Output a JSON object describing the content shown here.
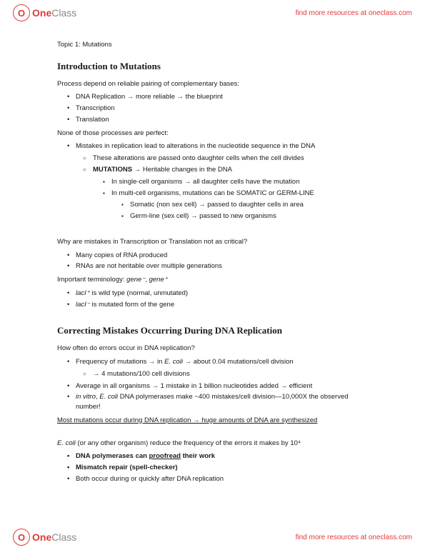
{
  "header": {
    "logo_one": "One",
    "logo_class": "Class",
    "link": "find more resources at oneclass.com"
  },
  "footer": {
    "logo_one": "One",
    "logo_class": "Class",
    "link": "find more resources at oneclass.com"
  },
  "doc": {
    "topic": "Topic 1: Mutations",
    "sec1_title": "Introduction to Mutations",
    "p1": "Process depend on reliable pairing of complementary bases:",
    "b1": "DNA Replication → more reliable → the blueprint",
    "b2": "Transcription",
    "b3": "Translation",
    "p2": "None of those processes are perfect:",
    "b4": "Mistakes in replication lead to alterations in the nucleotide sequence in the DNA",
    "b4a": "These alterations are passed onto daughter cells when the cell divides",
    "b4b_pre": "MUTATIONS",
    "b4b_post": " → Heritable changes in the DNA",
    "b4b1": "In single-cell organisms → all daughter cells have the mutation",
    "b4b2": "In multi-cell organisms, mutations can be SOMATIC or GERM-LINE",
    "b4b2a": "Somatic (non sex cell) → passed to daughter cells in area",
    "b4b2b": "Germ-line (sex cell) → passed to new organisms",
    "q1": "Why are mistakes in Transcription or Translation not as critical?",
    "b5": "Many copies of RNA produced",
    "b6": "RNAs are not heritable over multiple generations",
    "term_label": "Important terminology: ",
    "term_gene1": "gene⁻",
    "term_sep": ", ",
    "term_gene2": "gene⁺",
    "b7_pre": "lacI⁺",
    "b7_post": " is wild type (normal, unmutated)",
    "b8_pre": "lacI⁻",
    "b8_post": " is mutated form of the gene",
    "sec2_title": "Correcting Mistakes Occurring During DNA Replication",
    "p3": "How often do errors occur in DNA replication?",
    "b9_a": "Frequency of mutations → in ",
    "b9_b": "E. coli",
    "b9_c": " → about 0.04 mutations/cell division",
    "b9a": "→ 4 mutations/100 cell divisions",
    "b10": "Average in all organisms → 1 mistake in 1 billion nucleotides added → efficient",
    "b11_a": "in vitro",
    "b11_b": ", ",
    "b11_c": "E. coli",
    "b11_d": " DNA polymerases make ~400 mistakes/cell division—10,000X the observed number!",
    "p4": "Most mutations occur during DNA replication → huge amounts of DNA are synthesized",
    "p5_a": "E. coli",
    "p5_b": " (or any other organism) reduce the frequency of the errors it makes by 10⁴",
    "b12_a": "DNA polymerases can ",
    "b12_b": "proofread",
    "b12_c": " their work",
    "b13": "Mismatch repair (spell-checker)",
    "b14": "Both occur during or quickly after DNA replication"
  }
}
